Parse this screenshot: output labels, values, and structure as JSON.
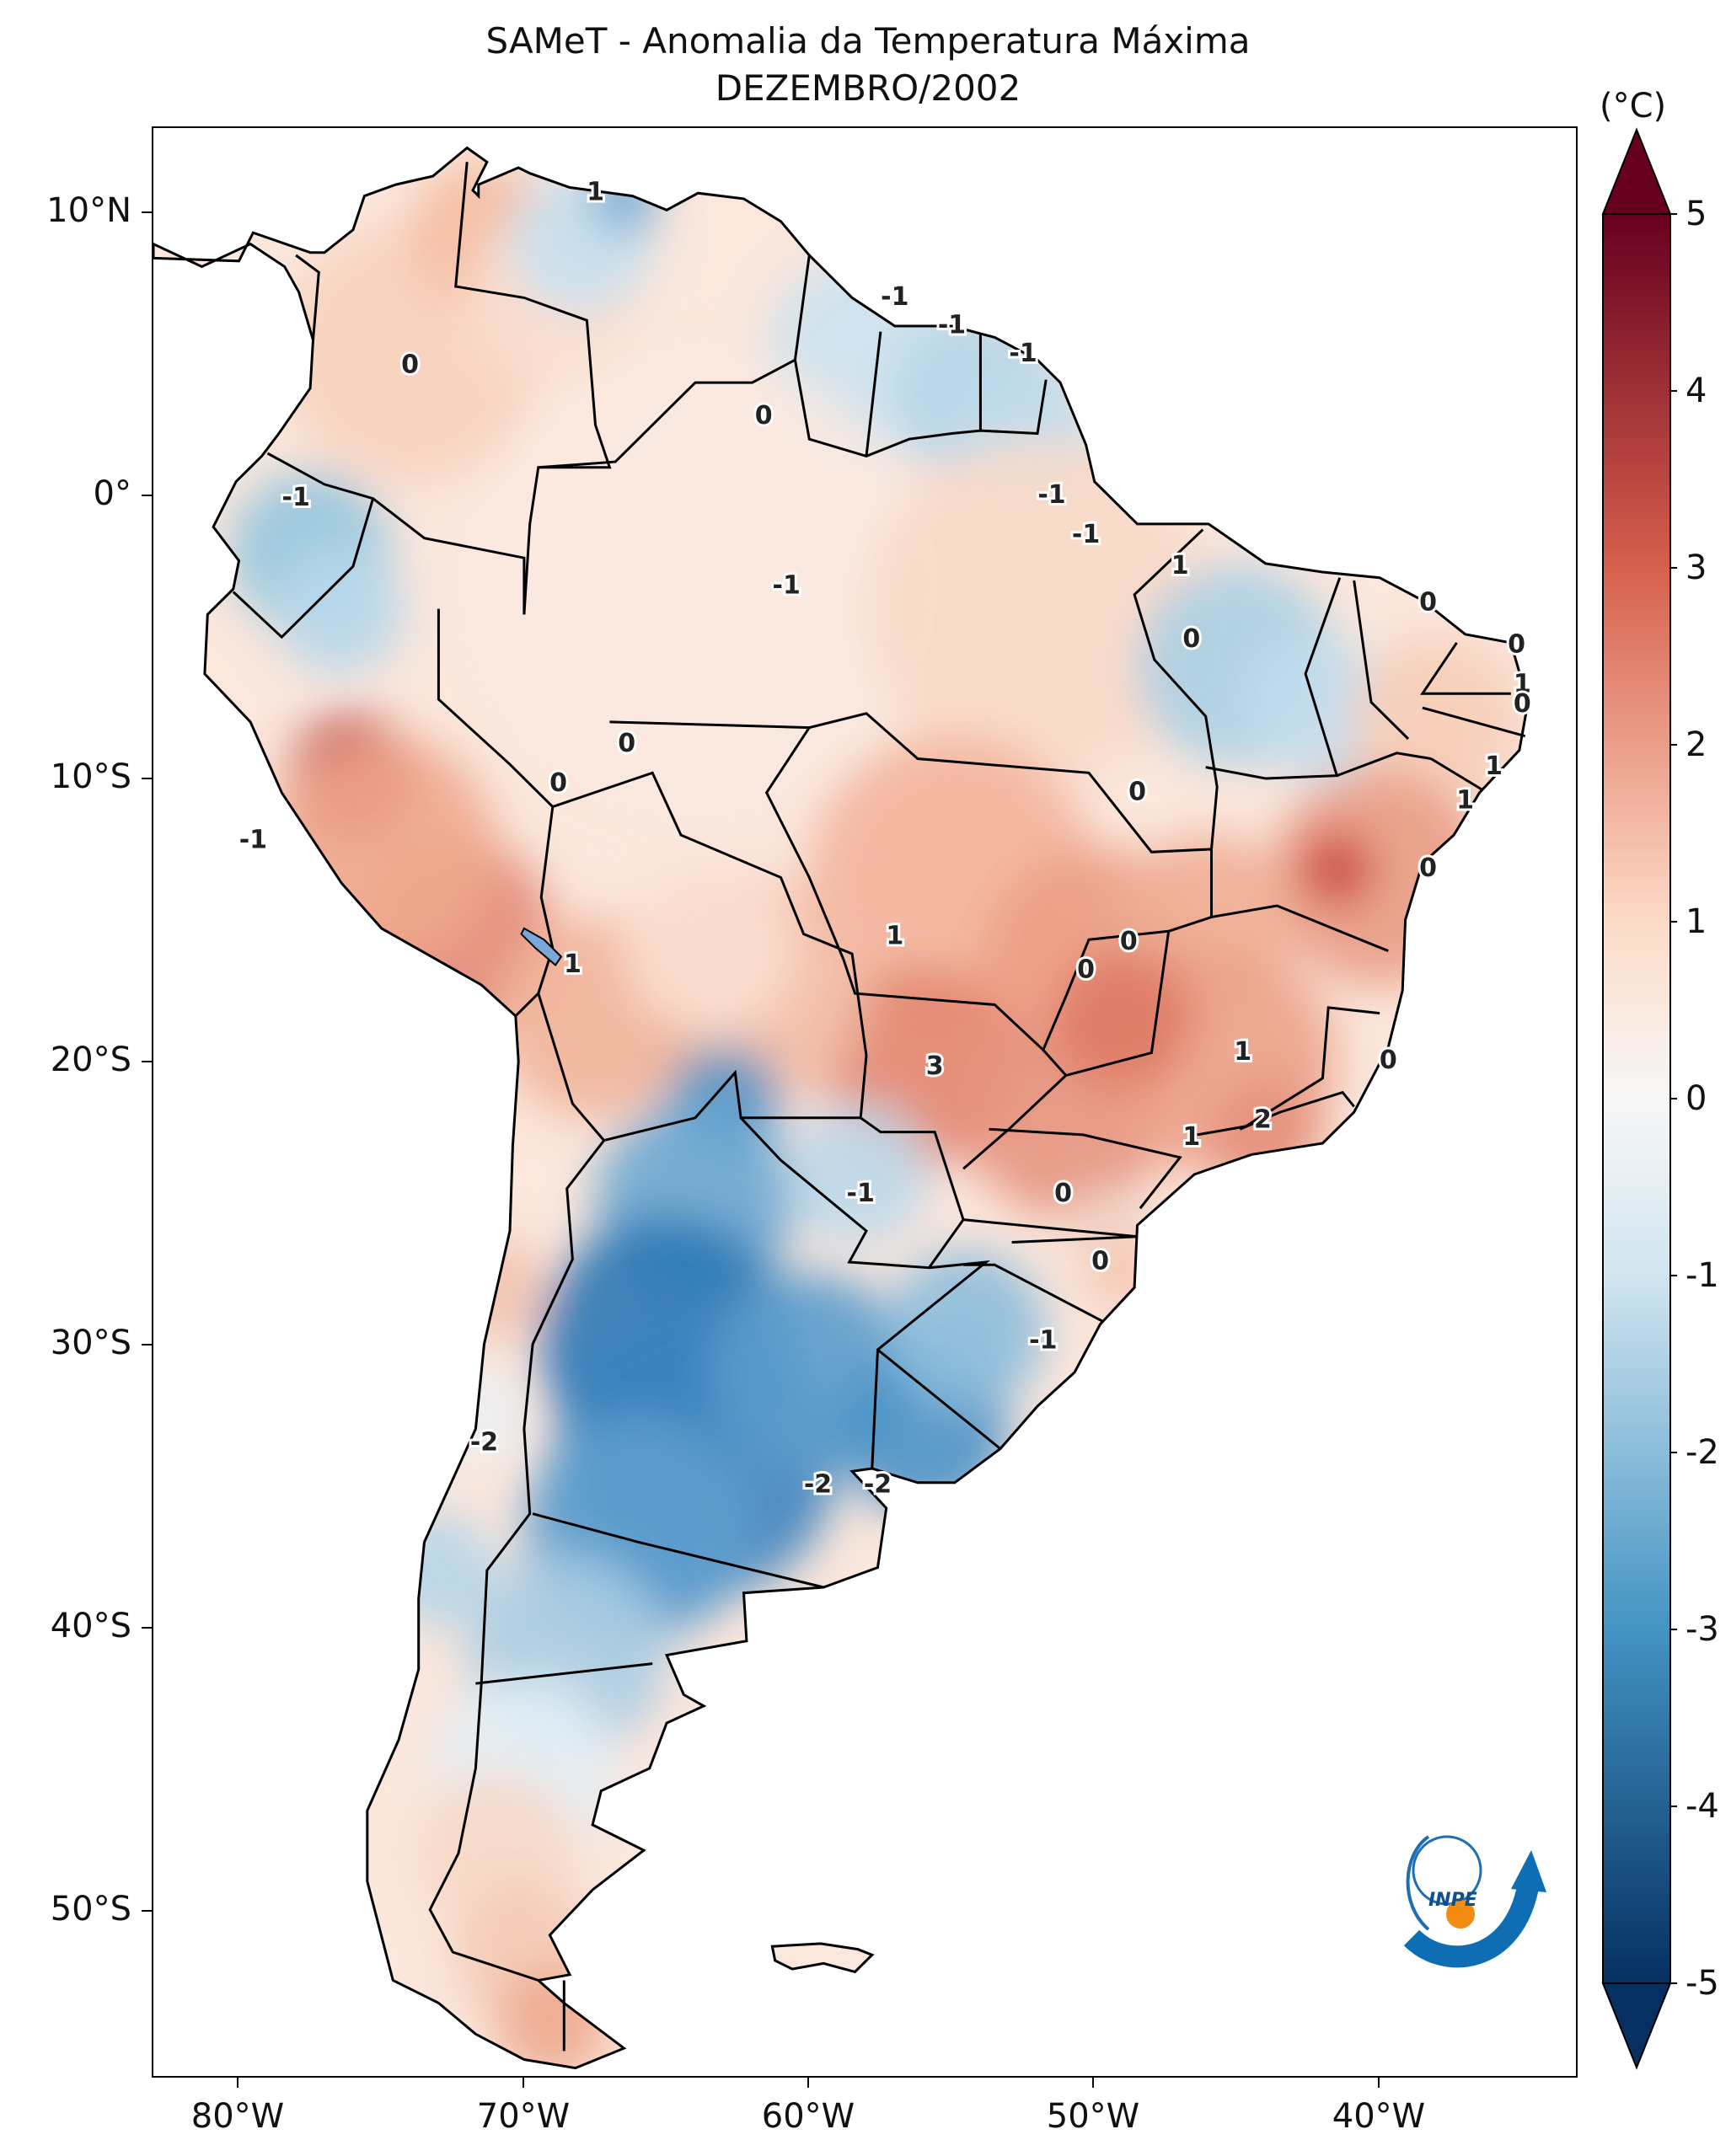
{
  "title": {
    "line1": "SAMeT - Anomalia da Temperatura Máxima",
    "line2": "DEZEMBRO/2002"
  },
  "axes": {
    "lat_ticks": [
      "10°N",
      "0°",
      "10°S",
      "20°S",
      "30°S",
      "40°S",
      "50°S"
    ],
    "lon_ticks": [
      "80°W",
      "70°W",
      "60°W",
      "50°W",
      "40°W"
    ]
  },
  "colorbar": {
    "unit": "(°C)",
    "tick_labels": [
      "5",
      "4",
      "3",
      "2",
      "1",
      "0",
      "-1",
      "-2",
      "-3",
      "-4",
      "-5"
    ],
    "range": [
      -5,
      5
    ],
    "colors": {
      "max": "#67001f",
      "warm": "#d6604d",
      "light_warm": "#fddbc7",
      "neutral": "#f7f7f7",
      "light_cool": "#d1e5f0",
      "cool": "#4393c3",
      "min": "#053061"
    }
  },
  "map": {
    "extent": {
      "lon": [
        -83,
        -33
      ],
      "lat": [
        -56,
        13
      ]
    },
    "variable": "Anomalia da Temperatura Máxima (°C)",
    "contour_labels": [
      {
        "text": "1",
        "lon": -67.5,
        "lat": 10.7
      },
      {
        "text": "0",
        "lon": -74.0,
        "lat": 4.6
      },
      {
        "text": "-1",
        "lon": -57.0,
        "lat": 7.0
      },
      {
        "text": "-1",
        "lon": -55.0,
        "lat": 6.0
      },
      {
        "text": "-1",
        "lon": -52.5,
        "lat": 5.0
      },
      {
        "text": "0",
        "lon": -61.6,
        "lat": 2.8
      },
      {
        "text": "-1",
        "lon": -51.5,
        "lat": 0.0
      },
      {
        "text": "-1",
        "lon": -50.3,
        "lat": -1.4
      },
      {
        "text": "-1",
        "lon": -78.0,
        "lat": -0.1
      },
      {
        "text": "-1",
        "lon": -60.8,
        "lat": -3.2
      },
      {
        "text": "1",
        "lon": -47.0,
        "lat": -2.5
      },
      {
        "text": "0",
        "lon": -38.3,
        "lat": -3.8
      },
      {
        "text": "0",
        "lon": -46.6,
        "lat": -5.1
      },
      {
        "text": "0",
        "lon": -35.2,
        "lat": -5.3
      },
      {
        "text": "1",
        "lon": -35.0,
        "lat": -6.7
      },
      {
        "text": "0",
        "lon": -35.0,
        "lat": -7.4
      },
      {
        "text": "1",
        "lon": -36.0,
        "lat": -9.6
      },
      {
        "text": "1",
        "lon": -37.0,
        "lat": -10.8
      },
      {
        "text": "0",
        "lon": -66.4,
        "lat": -8.8
      },
      {
        "text": "0",
        "lon": -68.8,
        "lat": -10.2
      },
      {
        "text": "0",
        "lon": -48.5,
        "lat": -10.5
      },
      {
        "text": "-1",
        "lon": -79.5,
        "lat": -12.2
      },
      {
        "text": "0",
        "lon": -38.3,
        "lat": -13.2
      },
      {
        "text": "1",
        "lon": -57.0,
        "lat": -15.6
      },
      {
        "text": "0",
        "lon": -48.8,
        "lat": -15.8
      },
      {
        "text": "0",
        "lon": -50.3,
        "lat": -16.8
      },
      {
        "text": "1",
        "lon": -68.3,
        "lat": -16.6
      },
      {
        "text": "3",
        "lon": -55.6,
        "lat": -20.2
      },
      {
        "text": "1",
        "lon": -44.8,
        "lat": -19.7
      },
      {
        "text": "0",
        "lon": -39.7,
        "lat": -20.0
      },
      {
        "text": "2",
        "lon": -44.1,
        "lat": -22.1
      },
      {
        "text": "1",
        "lon": -46.6,
        "lat": -22.7
      },
      {
        "text": "-1",
        "lon": -58.2,
        "lat": -24.7
      },
      {
        "text": "0",
        "lon": -51.1,
        "lat": -24.7
      },
      {
        "text": "0",
        "lon": -49.8,
        "lat": -27.1
      },
      {
        "text": "-1",
        "lon": -51.8,
        "lat": -29.9
      },
      {
        "text": "-2",
        "lon": -71.4,
        "lat": -33.5
      },
      {
        "text": "-2",
        "lon": -59.7,
        "lat": -35.0
      },
      {
        "text": "-2",
        "lon": -57.6,
        "lat": -35.0
      }
    ]
  },
  "logo": {
    "text": "INPE"
  }
}
